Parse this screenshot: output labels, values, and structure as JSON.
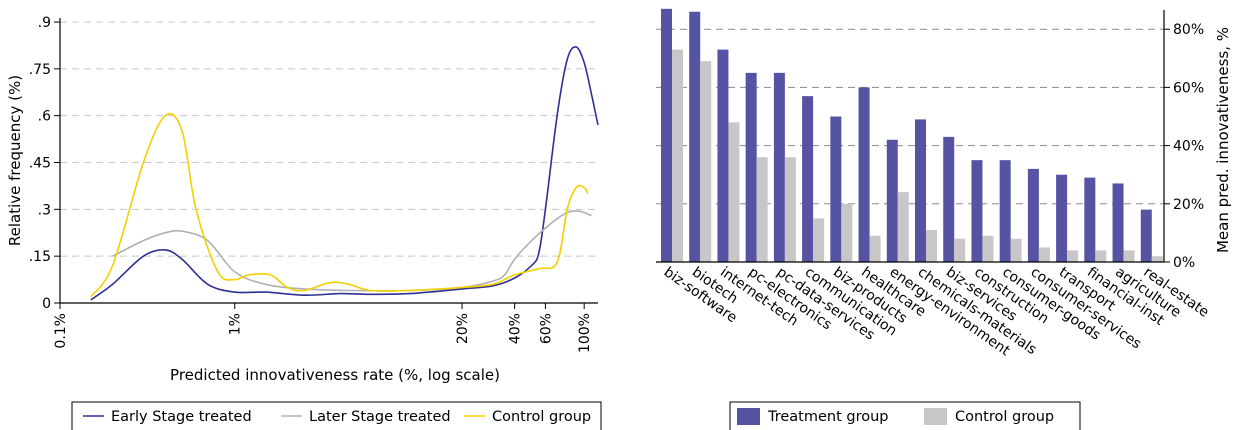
{
  "chart_data": [
    {
      "type": "line",
      "xscale": "log",
      "xlabel": "Predicted innovativeness rate (%, log scale)",
      "ylabel": "Relative frequency (%)",
      "ylim": [
        0,
        0.9
      ],
      "y_ticks": [
        {
          "value": 0,
          "label": "0"
        },
        {
          "value": 0.15,
          "label": ".15"
        },
        {
          "value": 0.3,
          "label": ".3"
        },
        {
          "value": 0.45,
          "label": ".45"
        },
        {
          "value": 0.6,
          "label": ".6"
        },
        {
          "value": 0.75,
          "label": ".75"
        },
        {
          "value": 0.9,
          "label": ".9"
        }
      ],
      "x_ticks": [
        {
          "value": 0.1,
          "label": "0.1%"
        },
        {
          "value": 1,
          "label": "1%"
        },
        {
          "value": 20,
          "label": "20%"
        },
        {
          "value": 40,
          "label": "40%"
        },
        {
          "value": 60,
          "label": "60%"
        },
        {
          "value": 100,
          "label": "100%"
        }
      ],
      "grid": true,
      "legend_position": "bottom",
      "series": [
        {
          "name": "Early Stage treated",
          "color": "#2e3192",
          "x": [
            0.15,
            0.2,
            0.3,
            0.4,
            0.5,
            0.7,
            1.0,
            1.5,
            2.5,
            4,
            6,
            10,
            20,
            30,
            40,
            50,
            55,
            60,
            70,
            80,
            90,
            100,
            110,
            120
          ],
          "y": [
            0.01,
            0.06,
            0.15,
            0.17,
            0.14,
            0.06,
            0.035,
            0.035,
            0.025,
            0.03,
            0.028,
            0.03,
            0.045,
            0.055,
            0.08,
            0.12,
            0.16,
            0.3,
            0.6,
            0.78,
            0.82,
            0.77,
            0.67,
            0.57
          ]
        },
        {
          "name": "Later Stage treated",
          "color": "#b0b0b0",
          "x": [
            0.2,
            0.3,
            0.4,
            0.5,
            0.7,
            1.0,
            1.5,
            2.5,
            5,
            10,
            20,
            30,
            35,
            40,
            50,
            60,
            70,
            80,
            90,
            100,
            110
          ],
          "y": [
            0.15,
            0.2,
            0.225,
            0.23,
            0.2,
            0.1,
            0.06,
            0.045,
            0.04,
            0.04,
            0.05,
            0.07,
            0.09,
            0.14,
            0.2,
            0.24,
            0.27,
            0.29,
            0.295,
            0.29,
            0.28
          ]
        },
        {
          "name": "Control group",
          "color": "#f5d000",
          "x": [
            0.15,
            0.2,
            0.3,
            0.4,
            0.5,
            0.6,
            0.8,
            1.0,
            1.2,
            1.6,
            2.0,
            2.5,
            3.5,
            4.5,
            6,
            10,
            20,
            30,
            40,
            55,
            70,
            80,
            90,
            100,
            105
          ],
          "y": [
            0.02,
            0.12,
            0.45,
            0.6,
            0.55,
            0.3,
            0.1,
            0.075,
            0.09,
            0.09,
            0.05,
            0.04,
            0.065,
            0.06,
            0.04,
            0.04,
            0.05,
            0.06,
            0.09,
            0.11,
            0.13,
            0.3,
            0.37,
            0.37,
            0.35
          ]
        }
      ]
    },
    {
      "type": "bar",
      "ylabel": "Mean pred. innovativeness, %",
      "ylim": [
        0,
        0.8
      ],
      "y_axis_position": "right",
      "y_ticks": [
        {
          "value": 0,
          "label": "0%"
        },
        {
          "value": 0.2,
          "label": "20%"
        },
        {
          "value": 0.4,
          "label": "40%"
        },
        {
          "value": 0.6,
          "label": "60%"
        },
        {
          "value": 0.8,
          "label": "80%"
        }
      ],
      "grid": true,
      "legend_position": "bottom",
      "categories": [
        "biz-software",
        "biotech",
        "internet-tech",
        "pc-electronics",
        "pc-data-services",
        "communication",
        "biz-products",
        "healthcare",
        "energy-environment",
        "chemicals-materials",
        "biz-services",
        "construction",
        "consumer-goods",
        "consumer-services",
        "transport",
        "financial-inst",
        "agriculture",
        "real-estate"
      ],
      "series": [
        {
          "name": "Treatment group",
          "color": "#5654a2",
          "values": [
            0.87,
            0.86,
            0.73,
            0.65,
            0.65,
            0.57,
            0.5,
            0.6,
            0.42,
            0.49,
            0.43,
            0.35,
            0.35,
            0.32,
            0.3,
            0.29,
            0.27,
            0.18
          ]
        },
        {
          "name": "Control group",
          "color": "#c7c7c7",
          "values": [
            0.73,
            0.69,
            0.48,
            0.36,
            0.36,
            0.15,
            0.2,
            0.09,
            0.24,
            0.11,
            0.08,
            0.09,
            0.08,
            0.05,
            0.04,
            0.04,
            0.04,
            0.02
          ]
        }
      ]
    }
  ]
}
